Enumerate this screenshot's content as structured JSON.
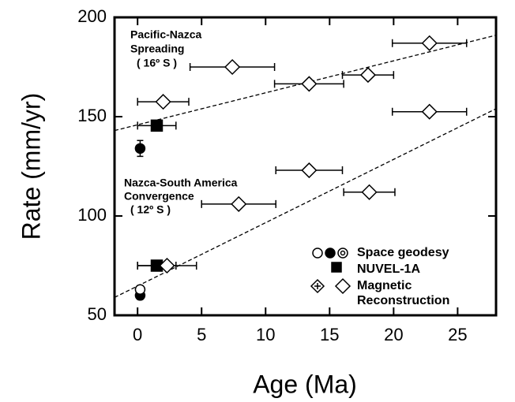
{
  "chart_data": {
    "type": "scatter",
    "x_label": "Age (Ma)",
    "y_label": "Rate (mm/yr)",
    "xlim": [
      -1.8,
      28
    ],
    "ylim": [
      50,
      200
    ],
    "xticks": [
      0,
      5,
      10,
      15,
      20,
      25
    ],
    "yticks": [
      50,
      100,
      150,
      200
    ],
    "annotations": [
      {
        "lines": [
          "Pacific-Nazca",
          "Spreading",
          "( 16º S )"
        ]
      },
      {
        "lines": [
          "Nazca-South America",
          "Convergence",
          "( 12º S )"
        ]
      }
    ],
    "fit_lines": [
      {
        "x": [
          -1.8,
          28
        ],
        "values": [
          143,
          191
        ]
      },
      {
        "x": [
          -1.8,
          28
        ],
        "values": [
          59,
          154
        ]
      }
    ],
    "series": [
      {
        "name": "Space geodesy",
        "color": "#000000",
        "markers": [
          "filled-circle",
          "filled-circle",
          "open-circle"
        ],
        "x": [
          0.2,
          0.2,
          0.2
        ],
        "values": [
          134,
          60,
          63
        ],
        "yerr": [
          4,
          2,
          2
        ]
      },
      {
        "name": "NUVEL-1A",
        "color": "#000000",
        "marker": "filled-square",
        "x": [
          1.5,
          1.5
        ],
        "values": [
          145.5,
          75
        ],
        "xerr": [
          1.5,
          1.5
        ]
      },
      {
        "name": "Magnetic Reconstruction",
        "color": "#000000",
        "marker": "open-diamond",
        "x": [
          2.0,
          7.4,
          13.4,
          18.0,
          22.8,
          2.3,
          7.9,
          13.4,
          18.1,
          22.8
        ],
        "values": [
          157.5,
          175,
          166.5,
          171,
          187,
          75,
          106,
          123,
          112,
          152.5
        ],
        "xerr": [
          2.0,
          3.3,
          2.7,
          2.0,
          2.9,
          2.3,
          2.9,
          2.6,
          2.0,
          2.9
        ]
      }
    ]
  }
}
